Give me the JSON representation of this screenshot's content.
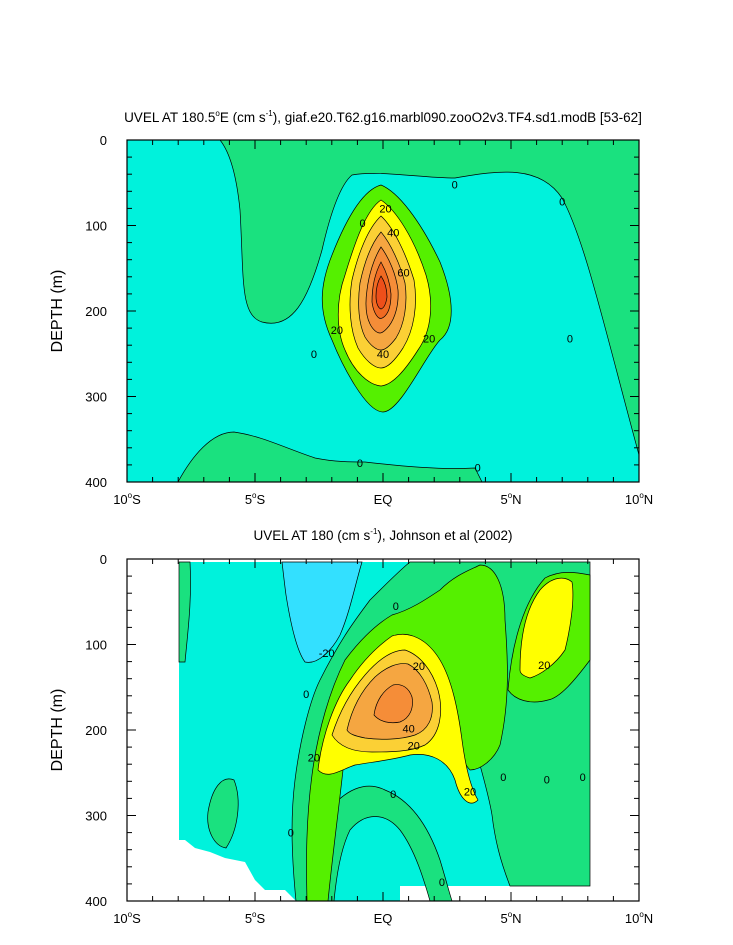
{
  "chart_data": [
    {
      "type": "contour",
      "title": "UVEL AT 180.5°E (cm s⁻¹), giaf.e20.T62.g16.marbl090.zooO2v3.TF4.sd1.modB [53-62]",
      "title_parts": {
        "pre": "UVEL AT 180.5",
        "deg": "o",
        "mid": "E (cm s",
        "sup": "-1",
        "post": "), giaf.e20.T62.g16.marbl090.zooO2v3.TF4.sd1.modB [53-62]"
      },
      "xlabel": "",
      "ylabel": "DEPTH (m)",
      "xlim": [
        -10,
        10
      ],
      "ylim": [
        400,
        0
      ],
      "x_ticks": [
        {
          "value": -10,
          "num": "10",
          "deg": "o",
          "hemi": "S"
        },
        {
          "value": -5,
          "num": "5",
          "deg": "o",
          "hemi": "S"
        },
        {
          "value": 0,
          "num": "EQ",
          "deg": "",
          "hemi": ""
        },
        {
          "value": 5,
          "num": "5",
          "deg": "o",
          "hemi": "N"
        },
        {
          "value": 10,
          "num": "10",
          "deg": "o",
          "hemi": "N"
        }
      ],
      "y_ticks": [
        0,
        100,
        200,
        300,
        400
      ],
      "contour_interval": 10,
      "fill_levels": [
        {
          "min": -20,
          "max": -10,
          "color": "#33e0ff"
        },
        {
          "min": -10,
          "max": 0,
          "color": "#00f2dc"
        },
        {
          "min": 0,
          "max": 10,
          "color": "#1ae17f"
        },
        {
          "min": 10,
          "max": 20,
          "color": "#55f000"
        },
        {
          "min": 20,
          "max": 30,
          "color": "#ffff00"
        },
        {
          "min": 30,
          "max": 40,
          "color": "#fbd035"
        },
        {
          "min": 40,
          "max": 50,
          "color": "#f5a641"
        },
        {
          "min": 50,
          "max": 60,
          "color": "#f58d38"
        },
        {
          "min": 60,
          "max": 80,
          "color": "#f06a22"
        }
      ],
      "core": {
        "lon": 0.1,
        "depth": 170,
        "max_speed": 70
      },
      "contour_labels": [
        {
          "text": "0",
          "lon": 2.8,
          "depth": 52
        },
        {
          "text": "0",
          "lon": 7.0,
          "depth": 72
        },
        {
          "text": "0",
          "lon": -0.8,
          "depth": 97
        },
        {
          "text": "20",
          "lon": 0.1,
          "depth": 80
        },
        {
          "text": "40",
          "lon": 0.4,
          "depth": 108
        },
        {
          "text": "60",
          "lon": 0.8,
          "depth": 155
        },
        {
          "text": "20",
          "lon": -1.8,
          "depth": 222
        },
        {
          "text": "20",
          "lon": 1.8,
          "depth": 232
        },
        {
          "text": "40",
          "lon": 0.0,
          "depth": 250
        },
        {
          "text": "0",
          "lon": -2.7,
          "depth": 250
        },
        {
          "text": "0",
          "lon": 7.3,
          "depth": 232
        },
        {
          "text": "0",
          "lon": -0.9,
          "depth": 378
        },
        {
          "text": "0",
          "lon": 3.7,
          "depth": 383
        }
      ]
    },
    {
      "type": "contour",
      "title": "UVEL AT 180 (cm s⁻¹), Johnson et al (2002)",
      "title_parts": {
        "pre": "UVEL AT 180 (cm s",
        "deg": "",
        "mid": "",
        "sup": "-1",
        "post": "), Johnson et al (2002)"
      },
      "xlabel": "",
      "ylabel": "DEPTH (m)",
      "xlim": [
        -10,
        10
      ],
      "ylim": [
        400,
        0
      ],
      "data_lon_range": [
        -8,
        8
      ],
      "x_ticks": [
        {
          "value": -10,
          "num": "10",
          "deg": "o",
          "hemi": "S"
        },
        {
          "value": -5,
          "num": "5",
          "deg": "o",
          "hemi": "S"
        },
        {
          "value": 0,
          "num": "EQ",
          "deg": "",
          "hemi": ""
        },
        {
          "value": 5,
          "num": "5",
          "deg": "o",
          "hemi": "N"
        },
        {
          "value": 10,
          "num": "10",
          "deg": "o",
          "hemi": "N"
        }
      ],
      "y_ticks": [
        0,
        100,
        200,
        300,
        400
      ],
      "contour_interval": 10,
      "fill_levels": [
        {
          "min": -20,
          "max": -10,
          "color": "#33e0ff"
        },
        {
          "min": -10,
          "max": 0,
          "color": "#00f2dc"
        },
        {
          "min": 0,
          "max": 10,
          "color": "#1ae17f"
        },
        {
          "min": 10,
          "max": 20,
          "color": "#55f000"
        },
        {
          "min": 20,
          "max": 30,
          "color": "#ffff00"
        },
        {
          "min": 30,
          "max": 40,
          "color": "#fbd035"
        },
        {
          "min": 40,
          "max": 50,
          "color": "#f5a641"
        },
        {
          "min": 50,
          "max": 60,
          "color": "#f58d38"
        }
      ],
      "core": {
        "lon": 0.6,
        "depth": 168,
        "max_speed": 55
      },
      "contour_labels": [
        {
          "text": "-20",
          "lon": -2.2,
          "depth": 110
        },
        {
          "text": "0",
          "lon": 0.5,
          "depth": 55
        },
        {
          "text": "0",
          "lon": -3.0,
          "depth": 158
        },
        {
          "text": "20",
          "lon": 1.4,
          "depth": 125
        },
        {
          "text": "20",
          "lon": 6.3,
          "depth": 124
        },
        {
          "text": "40",
          "lon": 1.0,
          "depth": 198
        },
        {
          "text": "20",
          "lon": 1.2,
          "depth": 218
        },
        {
          "text": "20",
          "lon": -2.7,
          "depth": 232
        },
        {
          "text": "0",
          "lon": 0.4,
          "depth": 275
        },
        {
          "text": "20",
          "lon": 3.4,
          "depth": 272
        },
        {
          "text": "0",
          "lon": 4.7,
          "depth": 255
        },
        {
          "text": "0",
          "lon": 6.4,
          "depth": 258
        },
        {
          "text": "0",
          "lon": 7.8,
          "depth": 255
        },
        {
          "text": "0",
          "lon": -3.6,
          "depth": 320
        },
        {
          "text": "0",
          "lon": 2.3,
          "depth": 378
        }
      ]
    }
  ]
}
